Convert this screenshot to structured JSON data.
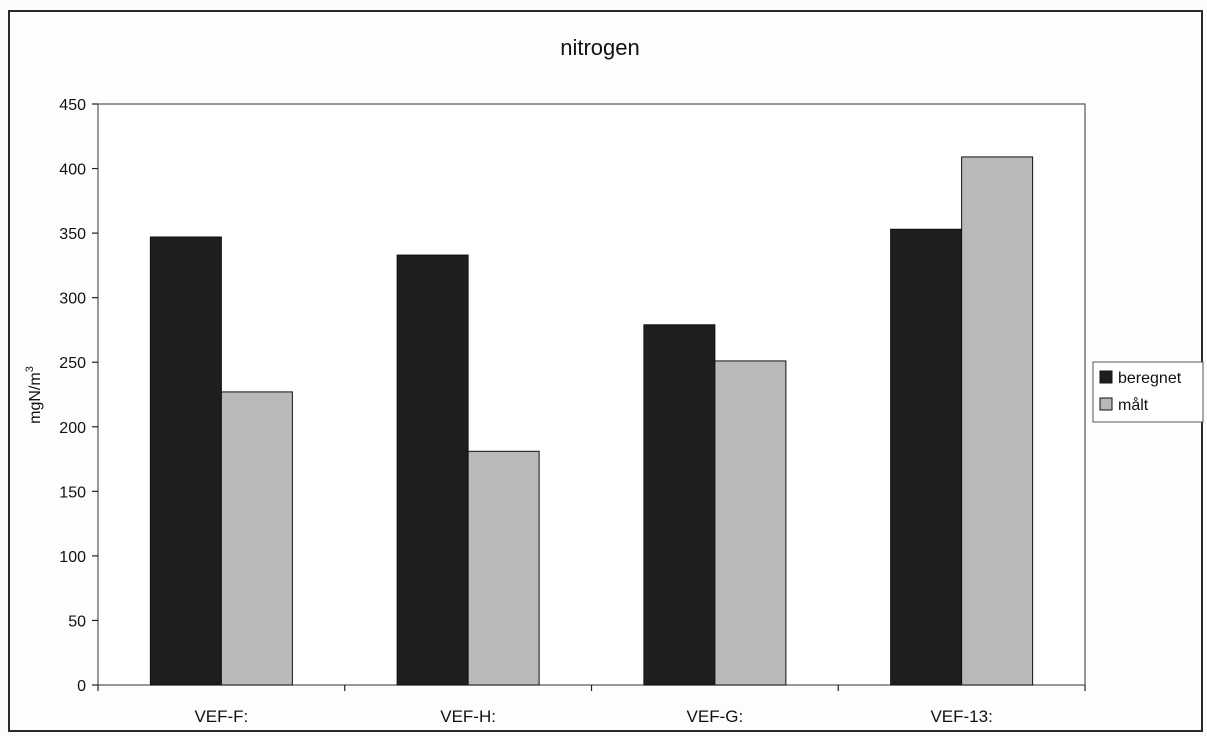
{
  "chart_data": {
    "type": "bar",
    "title": "nitrogen",
    "xlabel": "",
    "ylabel": "mgN/m",
    "ylabel_superscript": "3",
    "categories": [
      "VEF-F:",
      "VEF-H:",
      "VEF-G:",
      "VEF-13:"
    ],
    "series": [
      {
        "name": "beregnet",
        "values": [
          347,
          333,
          279,
          353
        ],
        "color": "#1e1e1e"
      },
      {
        "name": "målt",
        "values": [
          227,
          181,
          251,
          409
        ],
        "color": "#b9b9b9"
      }
    ],
    "ylim": [
      0,
      450
    ],
    "yticks": [
      0,
      50,
      100,
      150,
      200,
      250,
      300,
      350,
      400,
      450
    ],
    "grid": false,
    "legend_position": "right"
  }
}
